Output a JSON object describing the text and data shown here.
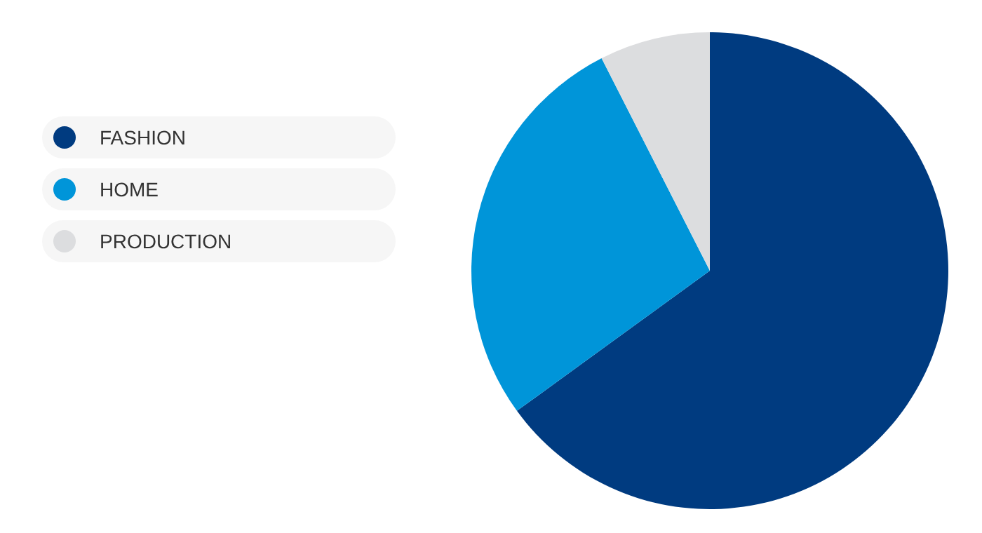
{
  "chart_data": {
    "type": "pie",
    "categories": [
      "FASHION",
      "HOME",
      "PRODUCTION"
    ],
    "values": [
      65,
      27.5,
      7.5
    ],
    "colors": [
      "#003b80",
      "#0095d9",
      "#dcdddf"
    ],
    "legend": "left"
  }
}
